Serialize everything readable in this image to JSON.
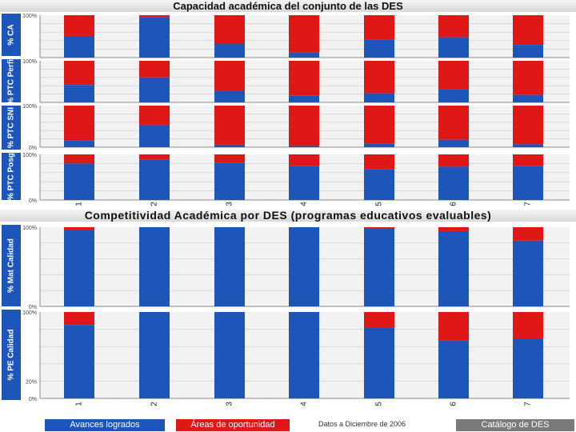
{
  "colors": {
    "achieved": "#1d55b8",
    "opportunity": "#e01717",
    "grid": "#cfcfcf",
    "panel_bg": "#f2f2f2"
  },
  "titles": {
    "top": "Capacidad académica del conjunto de las DES",
    "bottom": "Competitividad Académica por DES (programas educativos evaluables)"
  },
  "legend": {
    "achieved": "Avances logrados",
    "opportunity": "Áreas de oportunidad",
    "note": "Datos a Diciembre de 2006",
    "catalog": "Catálogo de DES"
  },
  "chart_data": [
    {
      "type": "bar",
      "stacked": true,
      "ylabel": "% CA",
      "categories": [
        "1",
        "2",
        "3",
        "4",
        "5",
        "6",
        "7"
      ],
      "ylim": [
        0,
        100
      ],
      "y_ticks": [
        "100%"
      ],
      "series": [
        {
          "name": "Avances logrados",
          "values": [
            50,
            95,
            33,
            12,
            43,
            48,
            30
          ]
        },
        {
          "name": "Áreas de oportunidad",
          "values": [
            50,
            5,
            67,
            88,
            57,
            52,
            70
          ]
        }
      ]
    },
    {
      "type": "bar",
      "stacked": true,
      "ylabel": "% PTC Perfil",
      "categories": [
        "1",
        "2",
        "3",
        "4",
        "5",
        "6",
        "7"
      ],
      "ylim": [
        0,
        100
      ],
      "y_ticks": [
        "100%"
      ],
      "series": [
        {
          "name": "Avances logrados",
          "values": [
            42,
            60,
            28,
            16,
            22,
            31,
            18
          ]
        },
        {
          "name": "Áreas de oportunidad",
          "values": [
            58,
            40,
            72,
            84,
            78,
            69,
            82
          ]
        }
      ]
    },
    {
      "type": "bar",
      "stacked": true,
      "ylabel": "% PTC SNI",
      "categories": [
        "1",
        "2",
        "3",
        "4",
        "5",
        "6",
        "7"
      ],
      "ylim": [
        0,
        100
      ],
      "y_ticks": [
        "100%",
        "0%"
      ],
      "series": [
        {
          "name": "Avances logrados",
          "values": [
            17,
            53,
            6,
            3,
            8,
            18,
            7
          ]
        },
        {
          "name": "Áreas de oportunidad",
          "values": [
            83,
            47,
            94,
            97,
            92,
            82,
            93
          ]
        }
      ]
    },
    {
      "type": "bar",
      "stacked": true,
      "ylabel": "% PTC Posg",
      "categories": [
        "1",
        "2",
        "3",
        "4",
        "5",
        "6",
        "7"
      ],
      "ylim": [
        0,
        100
      ],
      "y_ticks": [
        "100%",
        "0%"
      ],
      "series": [
        {
          "name": "Avances logrados",
          "values": [
            80,
            88,
            82,
            75,
            68,
            73,
            74
          ]
        },
        {
          "name": "Áreas de oportunidad",
          "values": [
            20,
            12,
            18,
            25,
            32,
            27,
            26
          ]
        }
      ]
    },
    {
      "type": "bar",
      "stacked": true,
      "ylabel": "% Mat Calidad",
      "categories": [
        "1",
        "2",
        "3",
        "4",
        "5",
        "6",
        "7"
      ],
      "ylim": [
        0,
        100
      ],
      "y_ticks": [
        "100%",
        "0%"
      ],
      "series": [
        {
          "name": "Avances logrados",
          "values": [
            96,
            100,
            100,
            100,
            98,
            95,
            83
          ]
        },
        {
          "name": "Áreas de oportunidad",
          "values": [
            4,
            0,
            0,
            0,
            2,
            5,
            17
          ]
        }
      ]
    },
    {
      "type": "bar",
      "stacked": true,
      "ylabel": "% PE Calidad",
      "categories": [
        "1",
        "2",
        "3",
        "4",
        "5",
        "6",
        "7"
      ],
      "ylim": [
        0,
        100
      ],
      "y_ticks": [
        "100%",
        "20%",
        "0%"
      ],
      "series": [
        {
          "name": "Avances logrados",
          "values": [
            85,
            100,
            100,
            100,
            82,
            67,
            69
          ]
        },
        {
          "name": "Áreas de oportunidad",
          "values": [
            15,
            0,
            0,
            0,
            18,
            33,
            31
          ]
        }
      ]
    }
  ]
}
